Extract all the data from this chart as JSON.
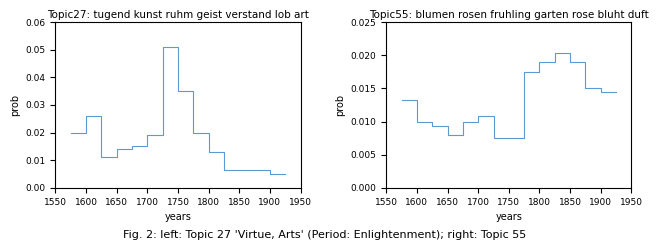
{
  "topic27": {
    "title": "Topic27: tugend kunst ruhm geist verstand lob art",
    "xlabel": "years",
    "ylabel": "prob",
    "xlim": [
      1550,
      1950
    ],
    "ylim": [
      0.0,
      0.06
    ],
    "yticks": [
      0.0,
      0.01,
      0.02,
      0.03,
      0.04,
      0.05,
      0.06
    ],
    "xticks": [
      1550,
      1600,
      1650,
      1700,
      1750,
      1800,
      1850,
      1900,
      1950
    ],
    "step_x": [
      1575,
      1600,
      1600,
      1625,
      1625,
      1650,
      1650,
      1675,
      1675,
      1700,
      1700,
      1725,
      1725,
      1750,
      1750,
      1775,
      1775,
      1800,
      1800,
      1825,
      1825,
      1850,
      1850,
      1875,
      1875,
      1900,
      1900,
      1925
    ],
    "step_y": [
      0.02,
      0.02,
      0.026,
      0.026,
      0.011,
      0.011,
      0.014,
      0.014,
      0.015,
      0.015,
      0.019,
      0.019,
      0.051,
      0.051,
      0.035,
      0.035,
      0.02,
      0.02,
      0.013,
      0.013,
      0.0065,
      0.0065,
      0.0065,
      0.0065,
      0.0065,
      0.0065,
      0.005,
      0.005
    ]
  },
  "topic55": {
    "title": "Topic55: blumen rosen fruhling garten rose bluht duft",
    "xlabel": "years",
    "ylabel": "prob",
    "xlim": [
      1550,
      1950
    ],
    "ylim": [
      0.0,
      0.025
    ],
    "yticks": [
      0.0,
      0.005,
      0.01,
      0.015,
      0.02,
      0.025
    ],
    "xticks": [
      1550,
      1600,
      1650,
      1700,
      1750,
      1800,
      1850,
      1900,
      1950
    ],
    "step_x": [
      1575,
      1600,
      1600,
      1625,
      1625,
      1650,
      1650,
      1675,
      1675,
      1700,
      1700,
      1725,
      1725,
      1750,
      1750,
      1775,
      1775,
      1800,
      1800,
      1825,
      1825,
      1850,
      1850,
      1875,
      1875,
      1900,
      1900,
      1925
    ],
    "step_y": [
      0.0133,
      0.0133,
      0.01,
      0.01,
      0.0093,
      0.0093,
      0.008,
      0.008,
      0.01,
      0.01,
      0.0108,
      0.0108,
      0.0075,
      0.0075,
      0.0075,
      0.0075,
      0.0175,
      0.0175,
      0.019,
      0.019,
      0.0203,
      0.0203,
      0.019,
      0.019,
      0.015,
      0.015,
      0.0145,
      0.0145
    ]
  },
  "line_color": "#5b9bd5",
  "title_fontsize": 7.5,
  "label_fontsize": 7,
  "tick_fontsize": 6.5,
  "caption": "Fig. 2: left: Topic 27 'Virtue, Arts' (Period: Enlightenment); right: Topic 55",
  "caption_fontsize": 8
}
